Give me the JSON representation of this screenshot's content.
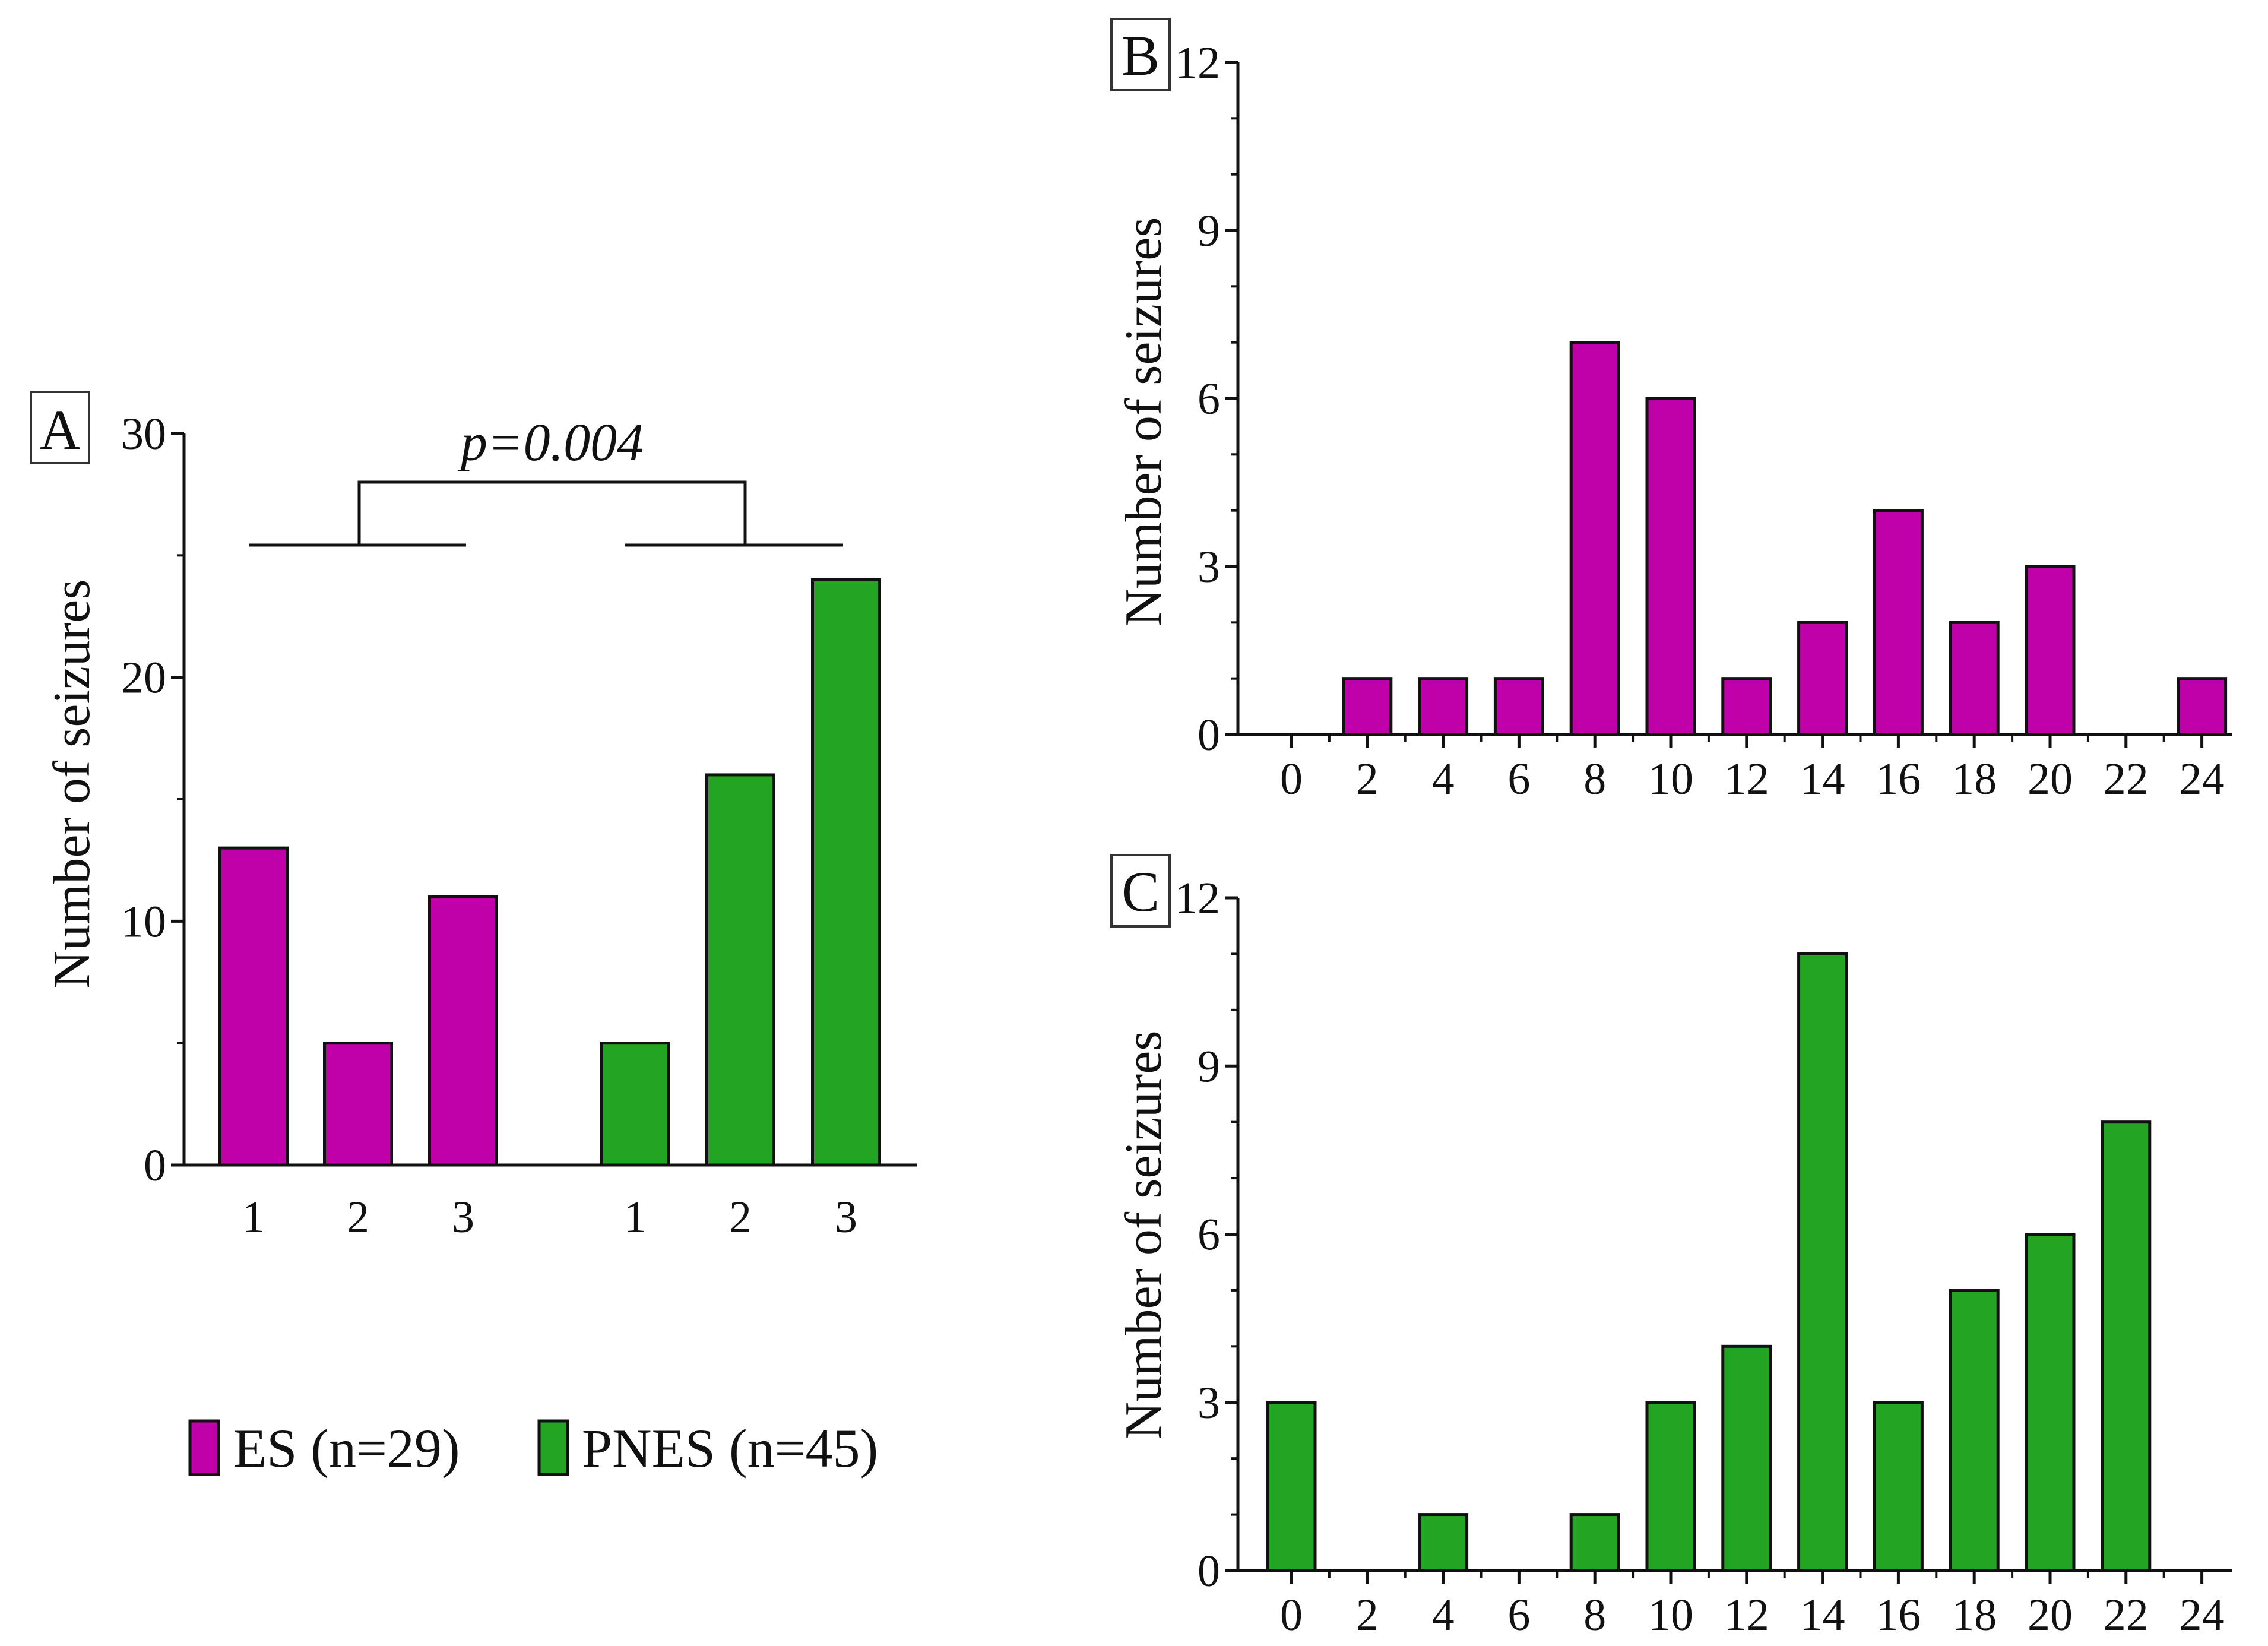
{
  "colors": {
    "es": "#c000a8",
    "pnes": "#23a423",
    "axis": "#111111"
  },
  "legend": {
    "es_label": "ES (n=29)",
    "pnes_label": "PNES (n=45)"
  },
  "chart_data": [
    {
      "panel": "A",
      "type": "bar",
      "ylabel": "Number of seizures",
      "ylim": [
        0,
        30
      ],
      "yticks": [
        0,
        10,
        20,
        30
      ],
      "annotation": "p=0.004",
      "groups": [
        {
          "name": "ES (n=29)",
          "categories": [
            "1",
            "2",
            "3"
          ],
          "values": [
            13,
            5,
            11
          ]
        },
        {
          "name": "PNES (n=45)",
          "categories": [
            "1",
            "2",
            "3"
          ],
          "values": [
            5,
            16,
            24
          ]
        }
      ]
    },
    {
      "panel": "B",
      "type": "bar",
      "ylabel": "Number of seizures",
      "ylim": [
        0,
        12
      ],
      "yticks": [
        0,
        3,
        6,
        9,
        12
      ],
      "x": [
        0,
        2,
        4,
        6,
        8,
        10,
        12,
        14,
        16,
        18,
        20,
        22,
        24
      ],
      "values": [
        0,
        1,
        1,
        1,
        7,
        6,
        1,
        2,
        4,
        2,
        3,
        0,
        1
      ],
      "series": "es"
    },
    {
      "panel": "C",
      "type": "bar",
      "ylabel": "Number of seizures",
      "ylim": [
        0,
        12
      ],
      "yticks": [
        0,
        3,
        6,
        9,
        12
      ],
      "x": [
        0,
        2,
        4,
        6,
        8,
        10,
        12,
        14,
        16,
        18,
        20,
        22,
        24
      ],
      "values": [
        3,
        0,
        1,
        0,
        1,
        3,
        4,
        11,
        3,
        5,
        6,
        8,
        0
      ],
      "series": "pnes"
    }
  ]
}
